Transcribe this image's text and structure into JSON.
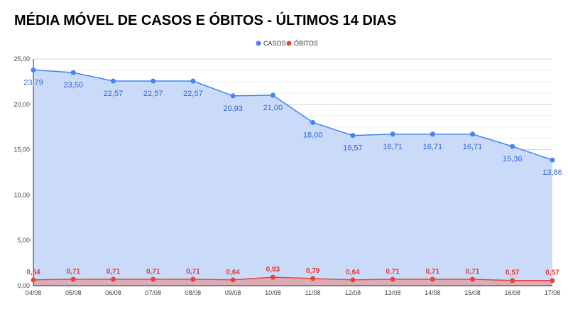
{
  "chart_data": {
    "type": "area",
    "title": "MÉDIA MÓVEL DE CASOS E ÓBITOS - ÚLTIMOS 14 DIAS",
    "categories": [
      "04/08",
      "05/08",
      "06/08",
      "07/08",
      "08/08",
      "09/08",
      "10/08",
      "11/08",
      "12/08",
      "13/08",
      "14/08",
      "15/08",
      "16/08",
      "17/08"
    ],
    "series": [
      {
        "name": "CASOS",
        "color": "#4285f4",
        "fill": "#c9dbf8",
        "values": [
          23.79,
          23.5,
          22.57,
          22.57,
          22.57,
          20.93,
          21.0,
          18.0,
          16.57,
          16.71,
          16.71,
          16.71,
          15.36,
          13.86
        ],
        "labels": [
          "23,79",
          "23,50",
          "22,57",
          "22,57",
          "22,57",
          "20,93",
          "21,00",
          "18,00",
          "16,57",
          "16,71",
          "16,71",
          "16,71",
          "15,36",
          "13,86"
        ]
      },
      {
        "name": "ÓBITOS",
        "color": "#ea4335",
        "fill": "#dba7b0",
        "values": [
          0.64,
          0.71,
          0.71,
          0.71,
          0.71,
          0.64,
          0.93,
          0.79,
          0.64,
          0.71,
          0.71,
          0.71,
          0.57,
          0.57
        ],
        "labels": [
          "0,64",
          "0,71",
          "0,71",
          "0,71",
          "0,71",
          "0,64",
          "0,93",
          "0,79",
          "0,64",
          "0,71",
          "0,71",
          "0,71",
          "0,57",
          "0,57"
        ]
      }
    ],
    "yticks": [
      "0,00",
      "5,00",
      "10,00",
      "15,00",
      "20,00",
      "25,00"
    ],
    "ylim": [
      0,
      25
    ],
    "legend_position": "top-center",
    "grid": true
  }
}
